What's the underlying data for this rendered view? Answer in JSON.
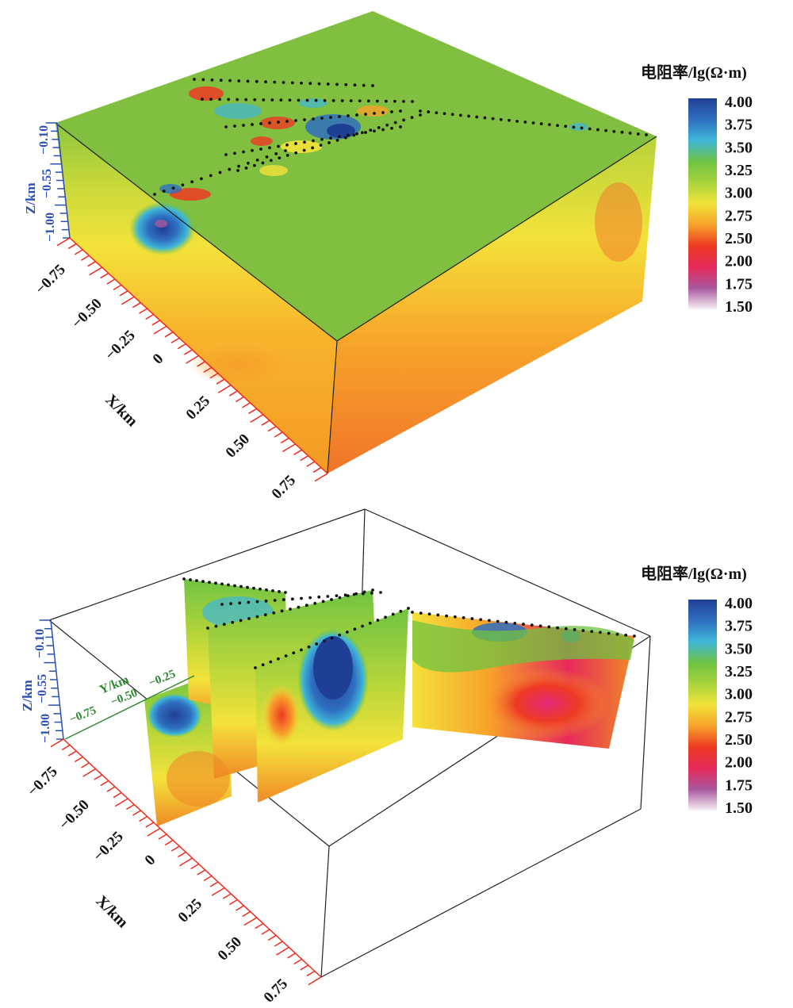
{
  "colorbar": {
    "title": "电阻率/lg(Ω·m)",
    "ticks": [
      "4.00",
      "3.75",
      "3.50",
      "3.25",
      "3.00",
      "2.75",
      "2.50",
      "2.00",
      "1.75",
      "1.50"
    ],
    "colors": [
      "#1f3f94",
      "#2f6fc0",
      "#3fb6d8",
      "#6fc342",
      "#a8d43c",
      "#f2e23a",
      "#f7a12a",
      "#ee3a22",
      "#e52a5a",
      "#a9589e",
      "#f7f0f6"
    ]
  },
  "top_panel": {
    "z_axis_label": "Z/km",
    "z_ticks": [
      "−0.10",
      "−0.55",
      "−1.00"
    ],
    "x_axis_label": "X/km",
    "x_ticks": [
      "−0.75",
      "−0.50",
      "−0.25",
      "0",
      "0.25",
      "0.50",
      "0.75"
    ]
  },
  "bottom_panel": {
    "z_axis_label": "Z/km",
    "z_ticks": [
      "−0.10",
      "−0.55",
      "−1.00"
    ],
    "y_axis_label": "Y/km",
    "y_ticks": [
      "−0.75",
      "−0.50",
      "−0.25"
    ],
    "x_axis_label": "X/km",
    "x_ticks": [
      "−0.75",
      "−0.50",
      "−0.25",
      "0",
      "0.25",
      "0.50",
      "0.75"
    ]
  }
}
